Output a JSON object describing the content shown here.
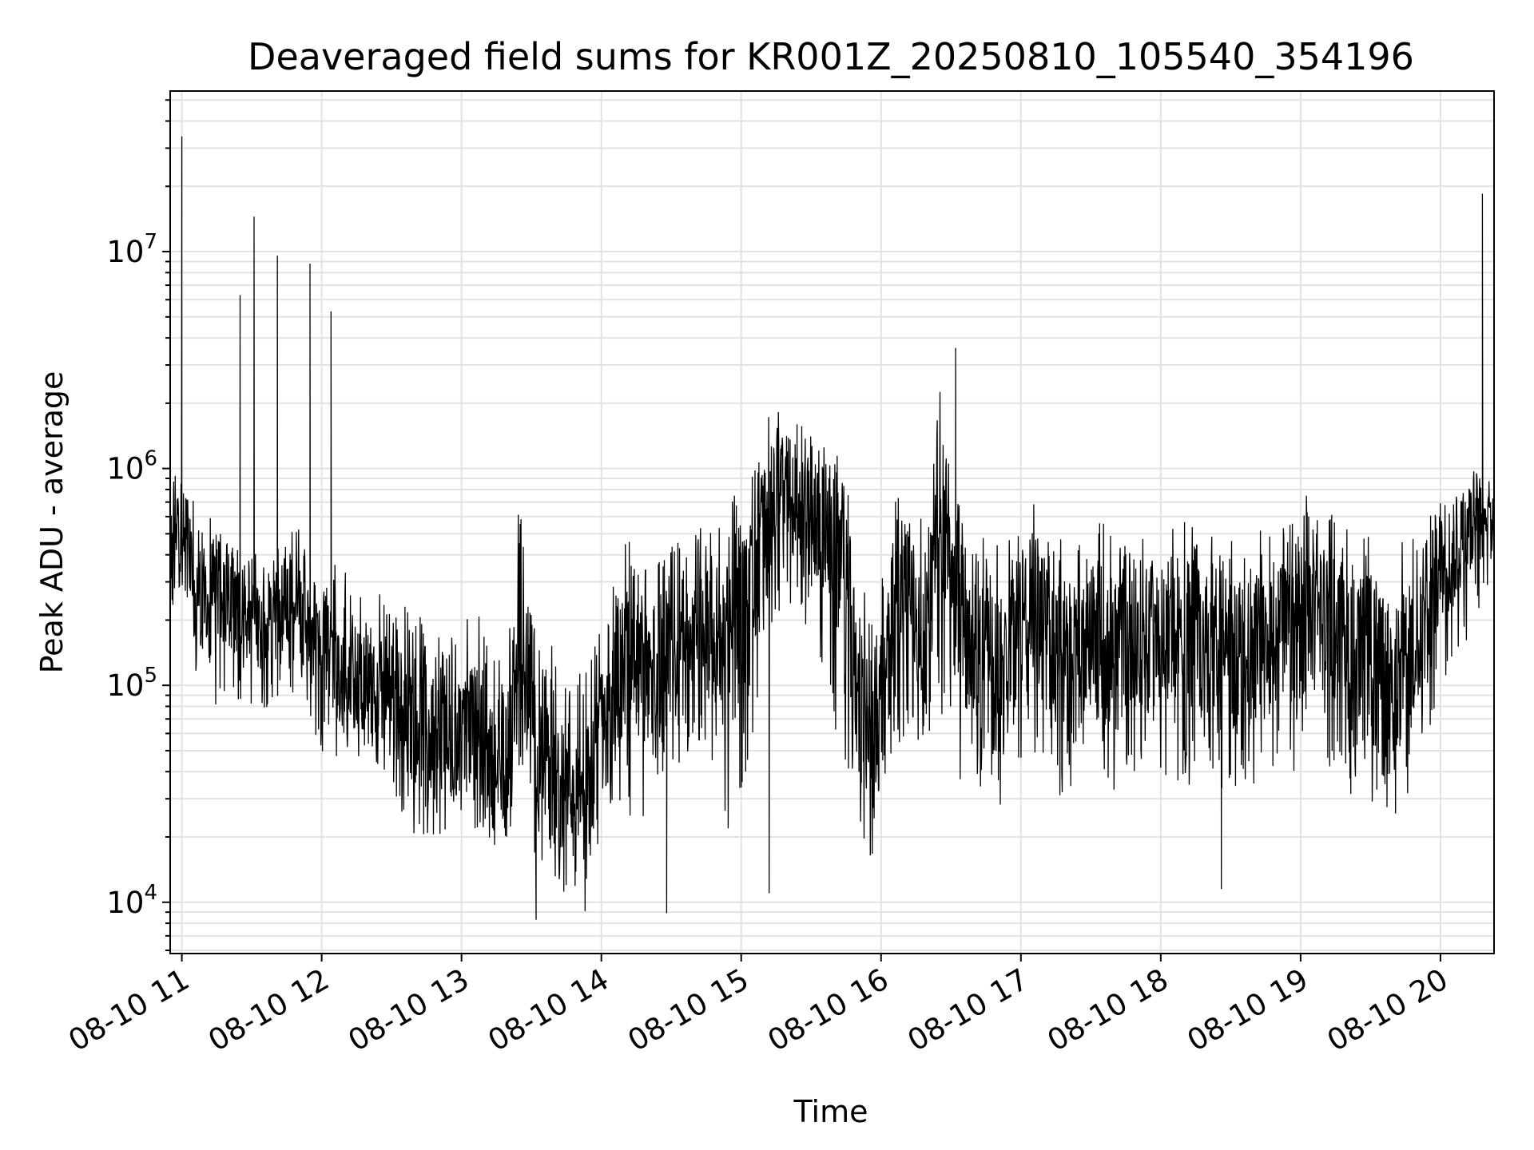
{
  "chart_data": {
    "type": "line",
    "title": "Deaveraged field sums for KR001Z_20250810_105540_354196",
    "xlabel": "Time",
    "ylabel": "Peak ADU - average",
    "yscale": "log",
    "ylim": [
      5800,
      55000000
    ],
    "grid": true,
    "x_tick_labels": [
      "08-10 11",
      "08-10 12",
      "08-10 13",
      "08-10 14",
      "08-10 15",
      "08-10 16",
      "08-10 17",
      "08-10 18",
      "08-10 19",
      "08-10 20"
    ],
    "y_tick_labels": [
      {
        "base": "10",
        "exp": "4",
        "value": 10000
      },
      {
        "base": "10",
        "exp": "5",
        "value": 100000
      },
      {
        "base": "10",
        "exp": "6",
        "value": 1000000
      },
      {
        "base": "10",
        "exp": "7",
        "value": 10000000
      }
    ],
    "xlim": [
      "2025-08-10 10:55",
      "2025-08-10 20:23"
    ],
    "series": [
      {
        "color": "#000000",
        "x": [
          "2025-08-10 10:55",
          "2025-08-10 11:00",
          "2025-08-10 11:05",
          "2025-08-10 11:10",
          "2025-08-10 11:15",
          "2025-08-10 11:20",
          "2025-08-10 11:25",
          "2025-08-10 11:30",
          "2025-08-10 11:35",
          "2025-08-10 11:40",
          "2025-08-10 11:45",
          "2025-08-10 11:50",
          "2025-08-10 11:55",
          "2025-08-10 12:00",
          "2025-08-10 12:05",
          "2025-08-10 12:10",
          "2025-08-10 12:15",
          "2025-08-10 12:20",
          "2025-08-10 12:25",
          "2025-08-10 12:30",
          "2025-08-10 12:35",
          "2025-08-10 12:40",
          "2025-08-10 12:45",
          "2025-08-10 12:50",
          "2025-08-10 12:55",
          "2025-08-10 13:00",
          "2025-08-10 13:05",
          "2025-08-10 13:10",
          "2025-08-10 13:15",
          "2025-08-10 13:20",
          "2025-08-10 13:25",
          "2025-08-10 13:30",
          "2025-08-10 13:35",
          "2025-08-10 13:40",
          "2025-08-10 13:45",
          "2025-08-10 13:50",
          "2025-08-10 13:55",
          "2025-08-10 14:00",
          "2025-08-10 14:05",
          "2025-08-10 14:10",
          "2025-08-10 14:15",
          "2025-08-10 14:20",
          "2025-08-10 14:25",
          "2025-08-10 14:30",
          "2025-08-10 14:35",
          "2025-08-10 14:40",
          "2025-08-10 14:45",
          "2025-08-10 14:50",
          "2025-08-10 14:55",
          "2025-08-10 15:00",
          "2025-08-10 15:05",
          "2025-08-10 15:10",
          "2025-08-10 15:15",
          "2025-08-10 15:20",
          "2025-08-10 15:25",
          "2025-08-10 15:30",
          "2025-08-10 15:35",
          "2025-08-10 15:40",
          "2025-08-10 15:45",
          "2025-08-10 15:50",
          "2025-08-10 15:55",
          "2025-08-10 16:00",
          "2025-08-10 16:05",
          "2025-08-10 16:10",
          "2025-08-10 16:15",
          "2025-08-10 16:20",
          "2025-08-10 16:25",
          "2025-08-10 16:30",
          "2025-08-10 16:35",
          "2025-08-10 16:40",
          "2025-08-10 16:45",
          "2025-08-10 16:50",
          "2025-08-10 16:55",
          "2025-08-10 17:00",
          "2025-08-10 17:05",
          "2025-08-10 17:10",
          "2025-08-10 17:15",
          "2025-08-10 17:20",
          "2025-08-10 17:25",
          "2025-08-10 17:30",
          "2025-08-10 17:35",
          "2025-08-10 17:40",
          "2025-08-10 17:45",
          "2025-08-10 17:50",
          "2025-08-10 17:55",
          "2025-08-10 18:00",
          "2025-08-10 18:05",
          "2025-08-10 18:10",
          "2025-08-10 18:15",
          "2025-08-10 18:20",
          "2025-08-10 18:25",
          "2025-08-10 18:30",
          "2025-08-10 18:35",
          "2025-08-10 18:40",
          "2025-08-10 18:45",
          "2025-08-10 18:50",
          "2025-08-10 18:55",
          "2025-08-10 19:00",
          "2025-08-10 19:05",
          "2025-08-10 19:10",
          "2025-08-10 19:15",
          "2025-08-10 19:20",
          "2025-08-10 19:25",
          "2025-08-10 19:30",
          "2025-08-10 19:35",
          "2025-08-10 19:40",
          "2025-08-10 19:45",
          "2025-08-10 19:50",
          "2025-08-10 19:55",
          "2025-08-10 20:00",
          "2025-08-10 20:05",
          "2025-08-10 20:10",
          "2025-08-10 20:15",
          "2025-08-10 20:20"
        ],
        "y": [
          400000,
          600000,
          300000,
          250000,
          280000,
          260000,
          220000,
          210000,
          190000,
          230000,
          200000,
          240000,
          180000,
          200000,
          140000,
          100000,
          110000,
          95000,
          90000,
          85000,
          80000,
          70000,
          65000,
          60000,
          55000,
          60000,
          70000,
          45000,
          40000,
          50000,
          200000,
          60000,
          45000,
          35000,
          30000,
          28000,
          35000,
          60000,
          80000,
          120000,
          130000,
          100000,
          110000,
          120000,
          130000,
          150000,
          160000,
          180000,
          220000,
          250000,
          300000,
          500000,
          700000,
          800000,
          650000,
          600000,
          550000,
          450000,
          300000,
          80000,
          60000,
          70000,
          200000,
          300000,
          200000,
          180000,
          1000000,
          300000,
          200000,
          150000,
          120000,
          100000,
          180000,
          200000,
          230000,
          180000,
          140000,
          120000,
          130000,
          150000,
          160000,
          140000,
          160000,
          170000,
          160000,
          150000,
          170000,
          180000,
          160000,
          180000,
          150000,
          140000,
          130000,
          150000,
          160000,
          170000,
          160000,
          180000,
          250000,
          200000,
          180000,
          150000,
          140000,
          120000,
          110000,
          100000,
          130000,
          140000,
          200000,
          400000,
          380000,
          500000,
          600000,
          650000
        ],
        "lo": [
          170000,
          300000,
          100000,
          110000,
          70000,
          90000,
          80000,
          80000,
          75000,
          90000,
          80000,
          95000,
          60000,
          50000,
          45000,
          50000,
          45000,
          45000,
          40000,
          35000,
          25000,
          20000,
          18000,
          20000,
          22000,
          25000,
          22000,
          20000,
          18000,
          20000,
          30000,
          18000,
          12000,
          10000,
          11000,
          12000,
          13000,
          20000,
          25000,
          30000,
          15000,
          35000,
          35000,
          40000,
          45000,
          50000,
          45000,
          40000,
          20000,
          30000,
          60000,
          100000,
          200000,
          250000,
          200000,
          150000,
          120000,
          60000,
          30000,
          25000,
          15000,
          20000,
          40000,
          60000,
          50000,
          40000,
          70000,
          40000,
          35000,
          30000,
          25000,
          25000,
          40000,
          45000,
          50000,
          35000,
          30000,
          25000,
          30000,
          35000,
          35000,
          30000,
          40000,
          40000,
          35000,
          30000,
          30000,
          35000,
          30000,
          40000,
          28000,
          30000,
          30000,
          32000,
          35000,
          40000,
          35000,
          40000,
          70000,
          50000,
          35000,
          30000,
          28000,
          27000,
          25000,
          25000,
          28000,
          30000,
          50000,
          100000,
          120000,
          150000,
          200000,
          280000
        ],
        "hi": [
          900000,
          1200000,
          700000,
          650000,
          600000,
          500000,
          500000,
          420000,
          400000,
          420000,
          450000,
          700000,
          350000,
          400000,
          380000,
          350000,
          300000,
          300000,
          280000,
          260000,
          250000,
          220000,
          200000,
          190000,
          180000,
          220000,
          260000,
          170000,
          160000,
          180000,
          800000,
          250000,
          200000,
          150000,
          120000,
          110000,
          140000,
          200000,
          300000,
          450000,
          520000,
          400000,
          420000,
          450000,
          500000,
          550000,
          600000,
          700000,
          800000,
          900000,
          1000000,
          1600000,
          2000000,
          2200000,
          1800000,
          1500000,
          1300000,
          1200000,
          1000000,
          300000,
          250000,
          300000,
          700000,
          900000,
          700000,
          600000,
          2500000,
          900000,
          700000,
          600000,
          500000,
          450000,
          600000,
          650000,
          750000,
          600000,
          500000,
          450000,
          480000,
          550000,
          600000,
          500000,
          550000,
          600000,
          550000,
          500000,
          600000,
          650000,
          550000,
          600000,
          520000,
          480000,
          450000,
          500000,
          550000,
          600000,
          550000,
          650000,
          900000,
          700000,
          600000,
          550000,
          520000,
          480000,
          450000,
          420000,
          480000,
          500000,
          700000,
          900000,
          800000,
          900000,
          1000000,
          900000
        ],
        "spikes": [
          {
            "x": "2025-08-10 11:00",
            "y": 34000000
          },
          {
            "x": "2025-08-10 11:25",
            "y": 6300000
          },
          {
            "x": "2025-08-10 11:31",
            "y": 14500000
          },
          {
            "x": "2025-08-10 11:41",
            "y": 9600000
          },
          {
            "x": "2025-08-10 11:55",
            "y": 8800000
          },
          {
            "x": "2025-08-10 12:04",
            "y": 5300000
          },
          {
            "x": "2025-08-10 16:32",
            "y": 3600000
          },
          {
            "x": "2025-08-10 20:18",
            "y": 18500000
          }
        ],
        "dips": [
          {
            "x": "2025-08-10 13:32",
            "y": 8300
          },
          {
            "x": "2025-08-10 13:53",
            "y": 9100
          },
          {
            "x": "2025-08-10 14:28",
            "y": 8900
          },
          {
            "x": "2025-08-10 15:12",
            "y": 11000
          },
          {
            "x": "2025-08-10 18:26",
            "y": 11500
          }
        ]
      }
    ]
  }
}
